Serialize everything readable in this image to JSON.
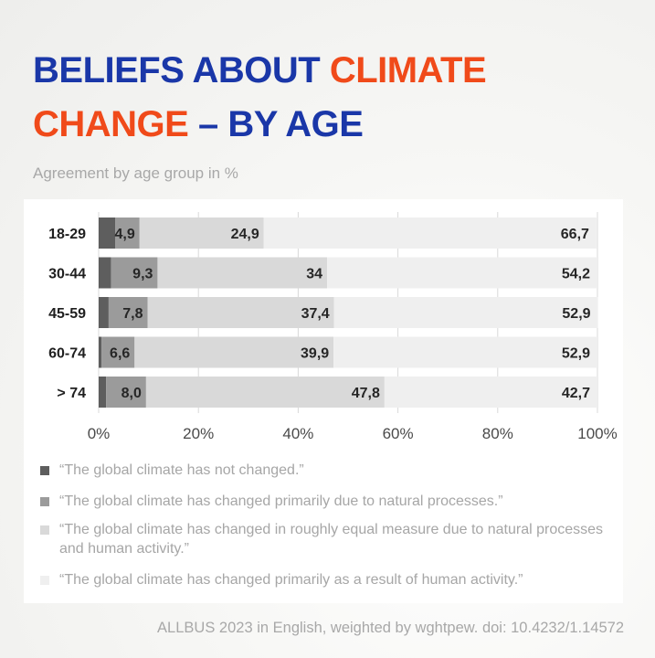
{
  "title_parts": {
    "p1": "BELIEFS ABOUT ",
    "p2": "CLIMATE",
    "p3": "CHANGE",
    "p4": " – BY AGE"
  },
  "subtitle": "Agreement by age group in %",
  "source": "ALLBUS 2023 in English, weighted by wghtpew. doi: 10.4232/1.14572",
  "colors": {
    "title_blue": "#1a37a8",
    "title_orange": "#f04a1a"
  },
  "chart_data": {
    "type": "bar",
    "orientation": "horizontal",
    "stacked": true,
    "categories": [
      "18-29",
      "30-44",
      "45-59",
      "60-74",
      "> 74"
    ],
    "series": [
      {
        "name": "“The global climate has not changed.”",
        "values": [
          3.3,
          2.5,
          2.0,
          0.6,
          1.5
        ],
        "labels": [
          "",
          "",
          "",
          "",
          ""
        ],
        "color": "#5e5e5e"
      },
      {
        "name": "“The global climate has changed primarily due to natural processes.”",
        "values": [
          4.9,
          9.3,
          7.8,
          6.6,
          8.0
        ],
        "labels": [
          "4,9",
          "9,3",
          "7,8",
          "6,6",
          "8,0"
        ],
        "color": "#9b9b9b"
      },
      {
        "name": "“The global climate has changed in roughly equal measure due to natural processes and human activity.”",
        "values": [
          24.9,
          34,
          37.4,
          39.9,
          47.8
        ],
        "labels": [
          "24,9",
          "34",
          "37,4",
          "39,9",
          "47,8"
        ],
        "color": "#d9d9d9"
      },
      {
        "name": "“The global climate has changed primarily as a result of human activity.”",
        "values": [
          66.7,
          54.2,
          52.9,
          52.9,
          42.7
        ],
        "labels": [
          "66,7",
          "54,2",
          "52,9",
          "52,9",
          "42,7"
        ],
        "color": "#efefef"
      }
    ],
    "x_ticks": [
      "0%",
      "20%",
      "40%",
      "60%",
      "80%",
      "100%"
    ],
    "xlim": [
      0,
      100
    ],
    "grid": "vertical",
    "legend_position": "bottom"
  }
}
